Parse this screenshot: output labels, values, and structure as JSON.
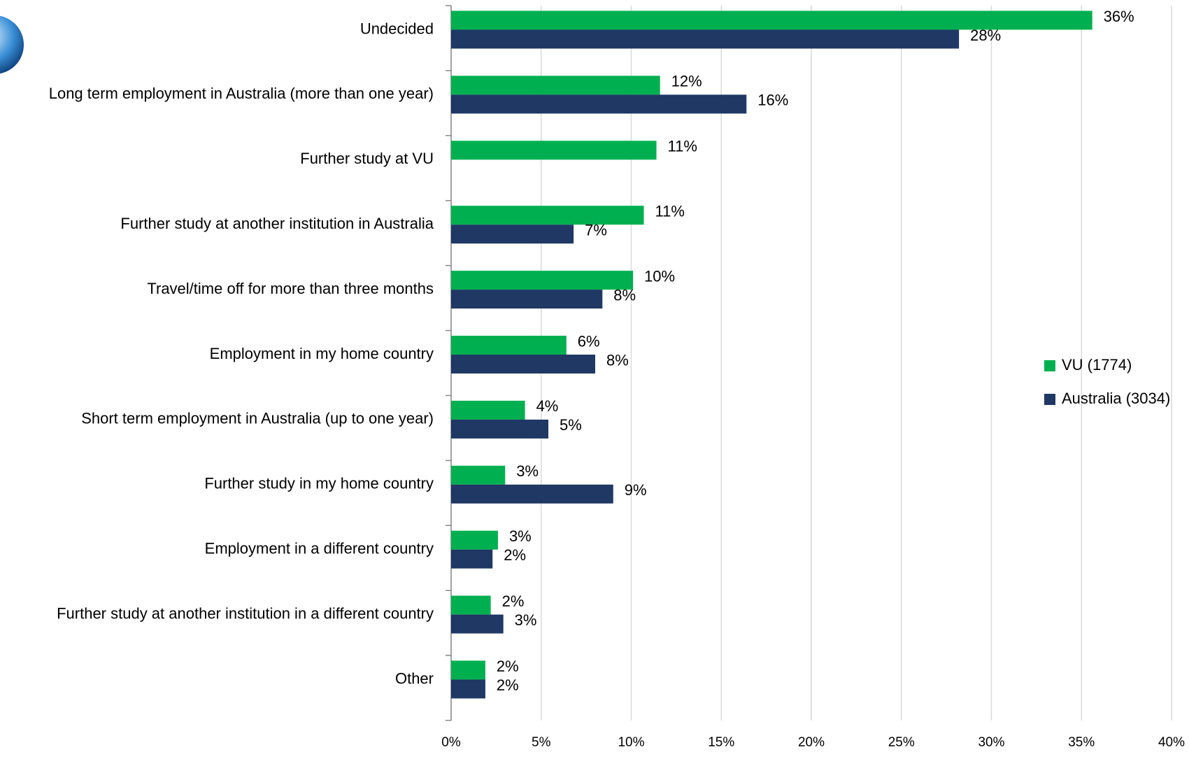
{
  "chart_data": {
    "type": "hbar",
    "categories": [
      "Undecided",
      "Long term employment in Australia (more than one year)",
      "Further study at VU",
      "Further study at another institution in Australia",
      "Travel/time off for more than three months",
      "Employment in my home country",
      "Short term employment in Australia (up to one year)",
      "Further study in my home country",
      "Employment in a different country",
      "Further study at another institution in a different country",
      "Other"
    ],
    "series": [
      {
        "name": "VU (1774)",
        "color": "#00b050",
        "values": [
          35.6,
          11.6,
          11.4,
          10.7,
          10.1,
          6.4,
          4.1,
          3.0,
          2.6,
          2.2,
          1.9
        ],
        "value_labels": [
          "36%",
          "12%",
          "11%",
          "11%",
          "10%",
          "6%",
          "4%",
          "3%",
          "3%",
          "2%",
          "2%"
        ]
      },
      {
        "name": "Australia (3034)",
        "color": "#1f3864",
        "values": [
          28.2,
          16.4,
          null,
          6.8,
          8.4,
          8.0,
          5.4,
          9.0,
          2.3,
          2.9,
          1.9
        ],
        "value_labels": [
          "28%",
          "16%",
          null,
          "7%",
          "8%",
          "8%",
          "5%",
          "9%",
          "2%",
          "3%",
          "2%"
        ]
      }
    ],
    "xlim": [
      0,
      40
    ],
    "xticks": [
      {
        "value": 0,
        "label": "0%"
      },
      {
        "value": 5,
        "label": "5%"
      },
      {
        "value": 10,
        "label": "10%"
      },
      {
        "value": 15,
        "label": "15%"
      },
      {
        "value": 20,
        "label": "20%"
      },
      {
        "value": 25,
        "label": "25%"
      },
      {
        "value": 30,
        "label": "30%"
      },
      {
        "value": 35,
        "label": "35%"
      },
      {
        "value": 40,
        "label": "40%"
      }
    ],
    "grid": true,
    "legend": "right"
  }
}
